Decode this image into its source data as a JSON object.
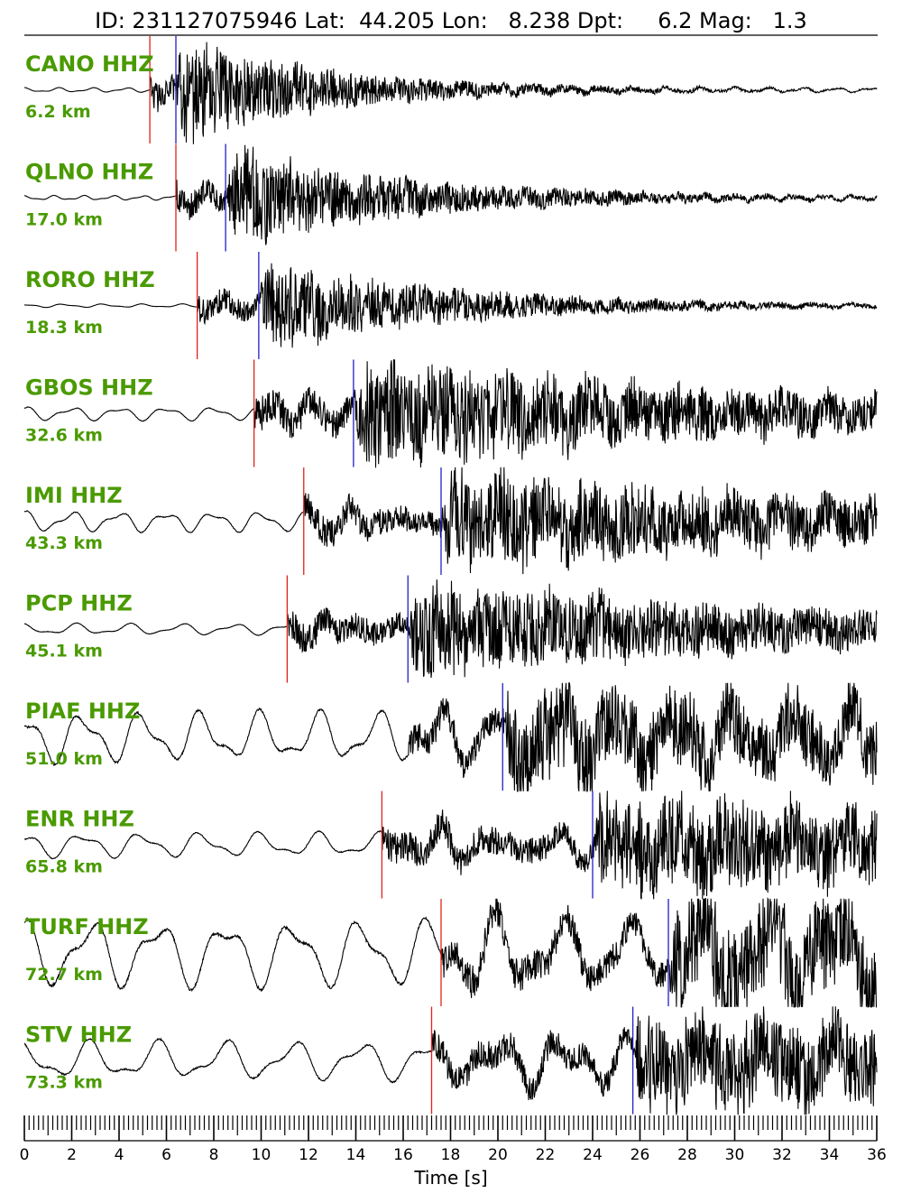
{
  "header": {
    "text": "ID: 231127075946 Lat:  44.205 Lon:   8.238 Dpt:     6.2 Mag:   1.3"
  },
  "colors": {
    "label": "#4a9a00",
    "p_pick": "#e0221b",
    "s_pick": "#2020c8",
    "trace": "#000000"
  },
  "chart_data": {
    "type": "line",
    "title": "ID: 231127075946 Lat:  44.205 Lon:   8.238 Dpt:     6.2 Mag:   1.3",
    "xlabel": "Time [s]",
    "ylabel": "",
    "xlim": [
      0,
      36
    ],
    "x_major_ticks": [
      0,
      2,
      4,
      6,
      8,
      10,
      12,
      14,
      16,
      18,
      20,
      22,
      24,
      26,
      28,
      30,
      32,
      34,
      36
    ],
    "x_minor_step": 0.2,
    "grid": false,
    "series": [
      {
        "name": "CANO HHZ",
        "distance": "6.2 km",
        "p_pick": 5.3,
        "s_pick": 6.4,
        "pre_amp": 0.04,
        "post_amp": 0.9,
        "decay": 0.15,
        "noise_freq": 0.7,
        "seed": 11
      },
      {
        "name": "QLNO HHZ",
        "distance": "17.0 km",
        "p_pick": 6.4,
        "s_pick": 8.5,
        "pre_amp": 0.04,
        "post_amp": 0.85,
        "decay": 0.12,
        "noise_freq": 0.8,
        "seed": 23
      },
      {
        "name": "RORO HHZ",
        "distance": "18.3 km",
        "p_pick": 7.3,
        "s_pick": 9.9,
        "pre_amp": 0.03,
        "post_amp": 0.8,
        "decay": 0.12,
        "noise_freq": 0.6,
        "seed": 37
      },
      {
        "name": "GBOS HHZ",
        "distance": "32.6 km",
        "p_pick": 9.7,
        "s_pick": 13.9,
        "pre_amp": 0.12,
        "post_amp": 0.95,
        "decay": 0.05,
        "noise_freq": 0.5,
        "seed": 41
      },
      {
        "name": "IMI HHZ",
        "distance": "43.3 km",
        "p_pick": 11.8,
        "s_pick": 17.6,
        "pre_amp": 0.18,
        "post_amp": 0.85,
        "decay": 0.04,
        "noise_freq": 0.5,
        "seed": 53
      },
      {
        "name": "PCP HHZ",
        "distance": "45.1 km",
        "p_pick": 11.1,
        "s_pick": 16.2,
        "pre_amp": 0.1,
        "post_amp": 0.85,
        "decay": 0.05,
        "noise_freq": 0.45,
        "seed": 67
      },
      {
        "name": "PIAF HHZ",
        "distance": "51.0 km",
        "p_pick": null,
        "s_pick": 20.2,
        "pre_amp": 0.45,
        "post_amp": 0.8,
        "decay": 0.03,
        "noise_freq": 0.4,
        "seed": 71
      },
      {
        "name": "ENR HHZ",
        "distance": "65.8 km",
        "p_pick": 15.1,
        "s_pick": 24.0,
        "pre_amp": 0.22,
        "post_amp": 0.9,
        "decay": 0.03,
        "noise_freq": 0.4,
        "seed": 83
      },
      {
        "name": "TURF HHZ",
        "distance": "72.7 km",
        "p_pick": 17.6,
        "s_pick": 27.2,
        "pre_amp": 0.6,
        "post_amp": 0.9,
        "decay": 0.02,
        "noise_freq": 0.35,
        "seed": 97
      },
      {
        "name": "STV HHZ",
        "distance": "73.3 km",
        "p_pick": 17.2,
        "s_pick": 25.7,
        "pre_amp": 0.35,
        "post_amp": 0.8,
        "decay": 0.02,
        "noise_freq": 0.35,
        "seed": 101
      }
    ]
  }
}
